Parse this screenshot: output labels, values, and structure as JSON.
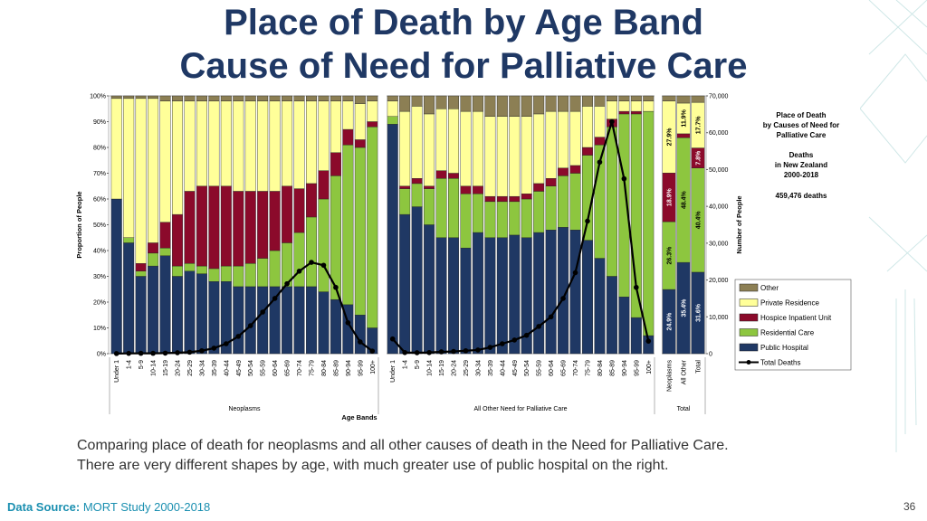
{
  "slide": {
    "title": [
      "Place of Death by Age Band",
      "Cause of Need for Palliative Care"
    ],
    "caption": [
      "Comparing place of death for neoplasms and all other causes of death in the Need for Palliative Care.",
      "There are very different shapes by age, with much greater use of public hospital on the right."
    ],
    "source_label": "Data Source:",
    "source": "MORT Study 2000-2018",
    "page_number": "36"
  },
  "chart_data": [
    {
      "type": "bar",
      "stacked": true,
      "legend": "right",
      "xlabel": "Age Bands",
      "ylabel": "Proportion of People",
      "y2label": "Number of People",
      "ylim": [
        0,
        100
      ],
      "yticks": [
        {
          "value": 0,
          "label": "0%"
        },
        {
          "value": 10,
          "label": "10%"
        },
        {
          "value": 20,
          "label": "20%"
        },
        {
          "value": 30,
          "label": "30%"
        },
        {
          "value": 40,
          "label": "40%"
        },
        {
          "value": 50,
          "label": "50%"
        },
        {
          "value": 60,
          "label": "60%"
        },
        {
          "value": 70,
          "label": "70%"
        },
        {
          "value": 80,
          "label": "80%"
        },
        {
          "value": 90,
          "label": "90%"
        },
        {
          "value": 100,
          "label": "100%"
        }
      ],
      "y2lim": [
        0,
        70000
      ],
      "y2ticks": [
        0,
        {
          "value": 10000,
          "label": "10,000"
        },
        {
          "value": 20000,
          "label": "20,000"
        },
        {
          "value": 30000,
          "label": "30,000"
        },
        {
          "value": 40000,
          "label": "40,000"
        },
        {
          "value": 50000,
          "label": "50,000"
        },
        {
          "value": 60000,
          "label": "60,000"
        },
        {
          "value": 70000,
          "label": "70,000"
        }
      ],
      "groups": [
        {
          "label": "Neoplasms",
          "categories": [
            "Under 1",
            "1-4",
            "5-9",
            "10-14",
            "15-19",
            "20-24",
            "25-29",
            "30-34",
            "35-39",
            "40-44",
            "45-49",
            "50-54",
            "55-59",
            "60-64",
            "65-69",
            "70-74",
            "75-79",
            "80-84",
            "85-89",
            "90-94",
            "95-99",
            "100+"
          ]
        },
        {
          "label": "All Other Need for Palliative Care",
          "categories": [
            "Under 1",
            "1-4",
            "5-9",
            "10-14",
            "15-19",
            "20-24",
            "25-29",
            "30-34",
            "35-39",
            "40-44",
            "45-49",
            "50-54",
            "55-59",
            "60-64",
            "65-69",
            "70-74",
            "75-79",
            "80-84",
            "85-89",
            "90-94",
            "95-99",
            "100+"
          ]
        }
      ],
      "series": [
        {
          "name": "Public Hospital",
          "color": "#1f3864",
          "values": [
            [
              60,
              43,
              30,
              34,
              38,
              30,
              32,
              31,
              28,
              28,
              26,
              26,
              26,
              26,
              26,
              26,
              26,
              24,
              21,
              19,
              15,
              10
            ],
            [
              89,
              54,
              57,
              50,
              45,
              45,
              41,
              47,
              45,
              45,
              46,
              45,
              47,
              48,
              49,
              48,
              44,
              37,
              30,
              22,
              14,
              7
            ]
          ]
        },
        {
          "name": "Residential Care",
          "color": "#8dc63f",
          "values": [
            [
              0,
              2,
              2,
              5,
              3,
              4,
              3,
              3,
              5,
              6,
              8,
              9,
              11,
              14,
              17,
              21,
              27,
              36,
              48,
              62,
              65,
              78
            ],
            [
              3,
              10,
              9,
              14,
              23,
              23,
              21,
              15,
              14,
              14,
              13,
              15,
              16,
              17,
              20,
              22,
              33,
              44,
              58,
              71,
              79,
              87
            ]
          ]
        },
        {
          "name": "Hospice Inpatient Unit",
          "color": "#8b0a2b",
          "values": [
            [
              0,
              0,
              3,
              4,
              10,
              20,
              28,
              31,
              32,
              31,
              29,
              28,
              26,
              23,
              22,
              17,
              13,
              11,
              9,
              6,
              3,
              2
            ],
            [
              0,
              1,
              2,
              1,
              3,
              2,
              3,
              3,
              2,
              2,
              2,
              2,
              3,
              3,
              3,
              3,
              3,
              3,
              3,
              1,
              1,
              0
            ]
          ]
        },
        {
          "name": "Private Residence",
          "color": "#ffff99",
          "values": [
            [
              39,
              54,
              64,
              56,
              47,
              44,
              35,
              33,
              33,
              33,
              35,
              35,
              35,
              35,
              33,
              34,
              32,
              27,
              20,
              11,
              14,
              8
            ],
            [
              6,
              29,
              28,
              28,
              24,
              25,
              29,
              29,
              31,
              31,
              31,
              30,
              27,
              26,
              22,
              21,
              16,
              12,
              7,
              4,
              4,
              4
            ]
          ]
        },
        {
          "name": "Other",
          "color": "#8c7f54",
          "values": [
            [
              1,
              1,
              1,
              1,
              2,
              2,
              2,
              2,
              2,
              2,
              2,
              2,
              2,
              2,
              2,
              2,
              2,
              2,
              2,
              2,
              3,
              2
            ],
            [
              2,
              6,
              4,
              7,
              5,
              5,
              6,
              6,
              8,
              8,
              8,
              8,
              7,
              6,
              6,
              6,
              4,
              4,
              2,
              2,
              2,
              2
            ]
          ]
        },
        {
          "name": "Total Deaths",
          "type": "line",
          "axis": "y2",
          "color": "#000000",
          "values": [
            [
              30,
              80,
              100,
              100,
              150,
              250,
              400,
              800,
              1500,
              2700,
              4700,
              7600,
              11300,
              15000,
              19000,
              22400,
              24800,
              24000,
              18000,
              8400,
              3200,
              700
            ],
            [
              4000,
              300,
              250,
              300,
              500,
              600,
              800,
              1000,
              1700,
              2700,
              3700,
              5000,
              7400,
              10000,
              15000,
              22000,
              36000,
              52000,
              63000,
              47500,
              18000,
              3400
            ]
          ]
        }
      ]
    },
    {
      "type": "bar",
      "stacked": true,
      "group_label": "Total",
      "categories": [
        "Neoplasms",
        "All Other",
        "Total"
      ],
      "series": [
        {
          "values": [
            24.9,
            35.4,
            31.6
          ],
          "value_labels": [
            "24.9%",
            "35.4%",
            "31.6%"
          ]
        },
        {
          "values": [
            26.3,
            48.4,
            40.4
          ],
          "value_labels": [
            "26.3%",
            "48.4%",
            "40.4%"
          ]
        },
        {
          "values": [
            18.9,
            1.5,
            7.8
          ],
          "value_labels": [
            "18.9%",
            null,
            "7.8%"
          ]
        },
        {
          "values": [
            27.9,
            11.9,
            17.7
          ],
          "value_labels": [
            "27.9%",
            "11.9%",
            "17.7%"
          ]
        },
        {
          "values": [
            2.0,
            2.8,
            2.5
          ]
        }
      ],
      "annotation": [
        "Place of Death",
        "by Causes of Need for",
        "Palliative Care",
        "Deaths",
        "in New Zealand",
        "2000-2018",
        "459,476 deaths"
      ]
    }
  ]
}
